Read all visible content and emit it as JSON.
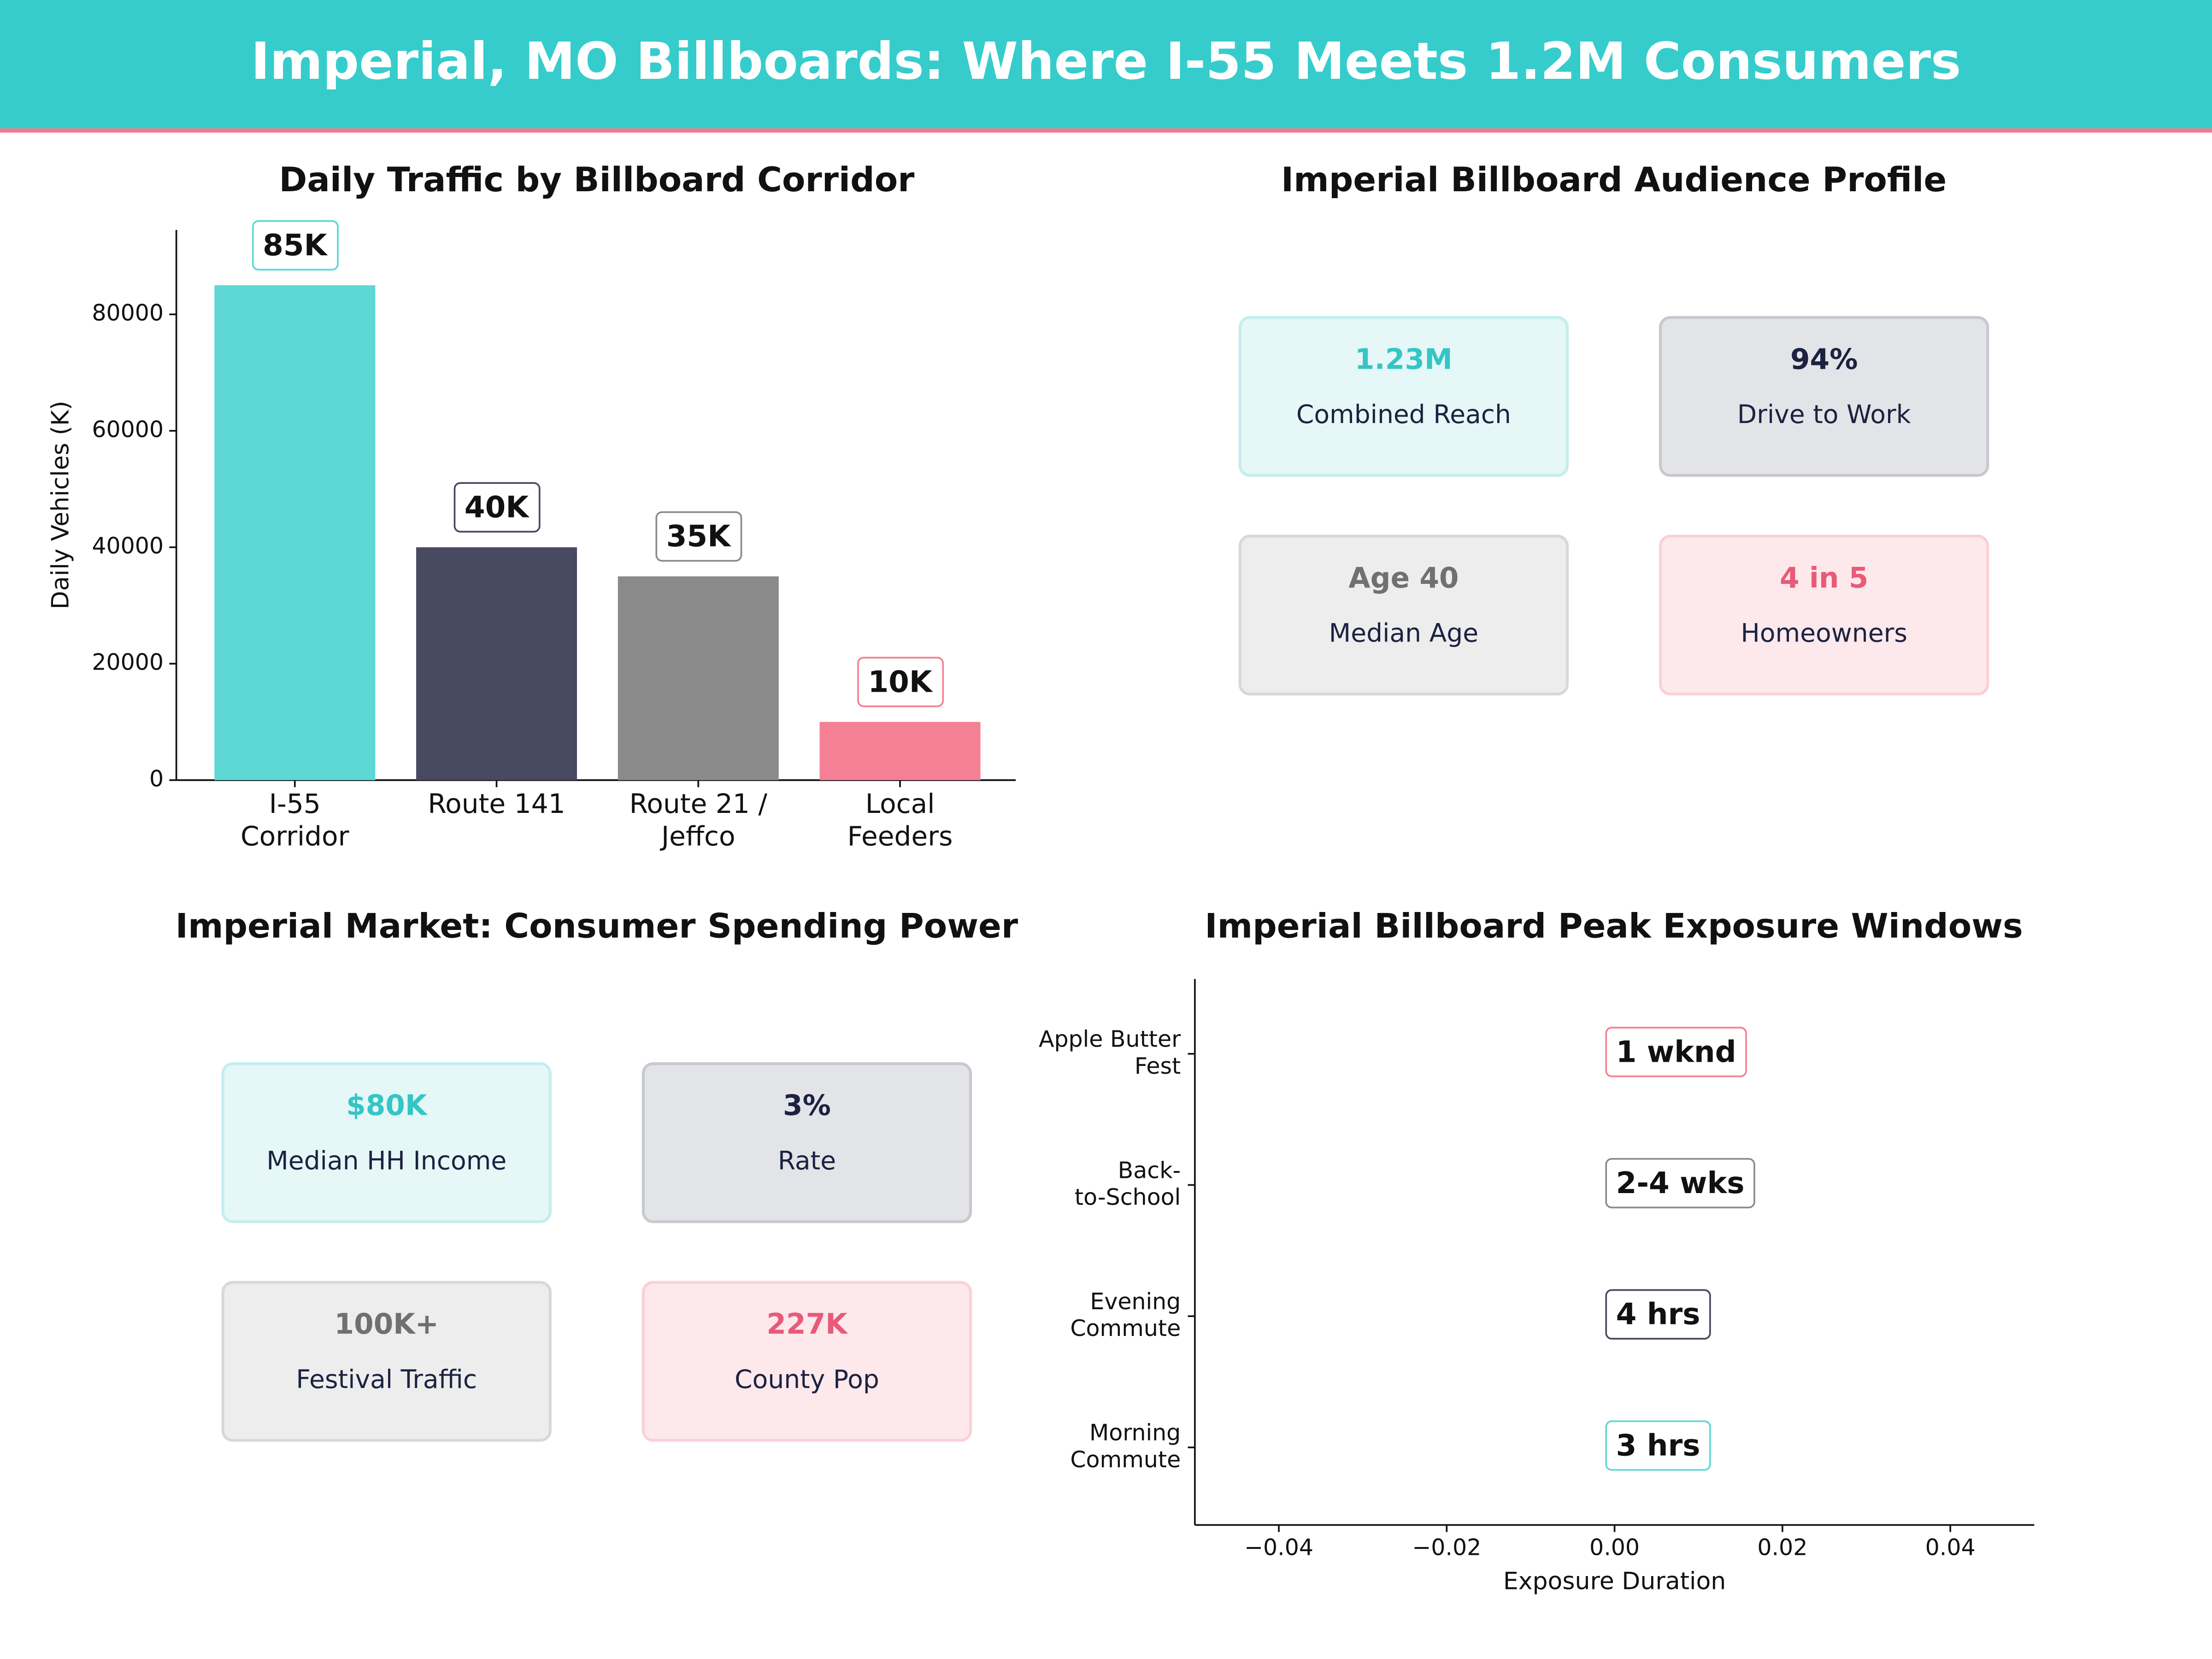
{
  "header": {
    "title": "Imperial, MO Billboards: Where I-55 Meets 1.2M Consumers"
  },
  "chart_data": [
    {
      "type": "bar",
      "title": "Daily Traffic by Billboard Corridor",
      "ylabel": "Daily Vehicles (K)",
      "categories": [
        "I-55\nCorridor",
        "Route 141",
        "Route 21 /\nJeffco",
        "Local\nFeeders"
      ],
      "values": [
        85000,
        40000,
        35000,
        10000
      ],
      "value_labels": [
        "85K",
        "40K",
        "35K",
        "10K"
      ],
      "colors": [
        "#5dd8d4",
        "#474a60",
        "#8a8a8a",
        "#f57f94"
      ],
      "ylim": [
        0,
        94500
      ],
      "yticks": [
        0,
        20000,
        40000,
        60000,
        80000
      ]
    },
    {
      "type": "barh",
      "title": "Imperial Billboard Peak Exposure Windows",
      "xlabel": "Exposure Duration",
      "categories": [
        "Morning\nCommute",
        "Evening\nCommute",
        "Back-\nto-School",
        "Apple Butter\nFest"
      ],
      "values": [
        0,
        0,
        0,
        0
      ],
      "duration_labels": [
        "3 hrs",
        "4 hrs",
        "2-4 wks",
        "1 wknd"
      ],
      "colors": [
        "#5dd8d4",
        "#474a60",
        "#8a8a8a",
        "#f57f94"
      ],
      "xlim": [
        -0.05,
        0.05
      ],
      "xticks": [
        {
          "value": -0.04,
          "label": "−0.04"
        },
        {
          "value": -0.02,
          "label": "−0.02"
        },
        {
          "value": 0,
          "label": "0.00"
        },
        0.02,
        0.04
      ]
    }
  ],
  "audience_profile": {
    "title": "Imperial Billboard Audience Profile",
    "cards": [
      {
        "value": "1.23M",
        "label": "Combined Reach"
      },
      {
        "value": "94%",
        "label": "Drive to Work"
      },
      {
        "value": "Age 40",
        "label": "Median Age"
      },
      {
        "value": "4 in 5",
        "label": "Homeowners"
      }
    ]
  },
  "spending_power": {
    "title": "Imperial Market: Consumer Spending Power",
    "cards": [
      {
        "value": "$80K",
        "label": "Median HH Income"
      },
      {
        "value": "3%",
        "label": "Rate"
      },
      {
        "value": "100K+",
        "label": "Festival Traffic"
      },
      {
        "value": "227K",
        "label": "County Pop"
      }
    ]
  }
}
